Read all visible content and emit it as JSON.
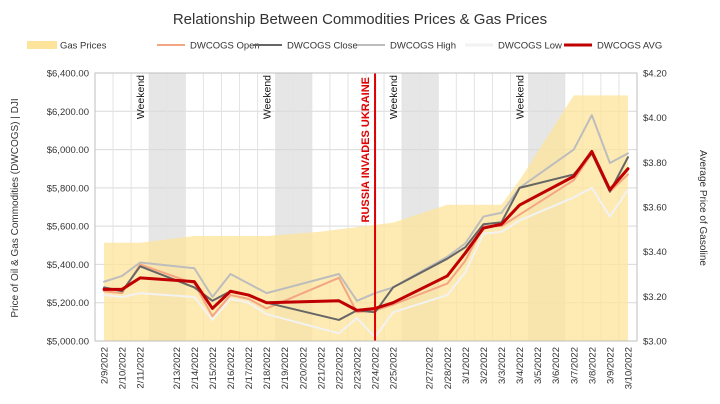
{
  "chart_data": {
    "type": "line",
    "title": "Relationship Between Commodities Prices & Gas Prices",
    "ylabel_left": "Price of Oil & Gas Commodities (DWCOGS)  |  DJI",
    "ylabel_right": "Average Price of Gasoline",
    "ylim_left": [
      5000,
      6400
    ],
    "ylim_right": [
      3.0,
      4.2
    ],
    "yticks_left": [
      "$5,000.00",
      "$5,200.00",
      "$5,400.00",
      "$5,600.00",
      "$5,800.00",
      "$6,000.00",
      "$6,200.00",
      "$6,400.00"
    ],
    "yticks_right": [
      "$3.00",
      "$3.20",
      "$3.40",
      "$3.60",
      "$3.80",
      "$4.00",
      "$4.20"
    ],
    "categories": [
      "2/9/2022",
      "2/10/2022",
      "2/11/2022",
      "2/12/2022",
      "2/13/2022",
      "2/14/2022",
      "2/15/2022",
      "2/16/2022",
      "2/17/2022",
      "2/18/2022",
      "2/19/2022",
      "2/20/2022",
      "2/21/2022",
      "2/22/2022",
      "2/23/2022",
      "2/24/2022",
      "2/25/2022",
      "2/26/2022",
      "2/27/2022",
      "2/28/2022",
      "3/1/2022",
      "3/2/2022",
      "3/3/2022",
      "3/4/2022",
      "3/5/2022",
      "3/6/2022",
      "3/7/2022",
      "3/8/2022",
      "3/9/2022",
      "3/10/2022"
    ],
    "xticks": [
      "2/9/2022",
      "2/10/2022",
      "2/11/2022",
      "2/13/2022",
      "2/14/2022",
      "2/15/2022",
      "2/16/2022",
      "2/17/2022",
      "2/18/2022",
      "2/19/2022",
      "2/20/2022",
      "2/21/2022",
      "2/22/2022",
      "2/23/2022",
      "2/24/2022",
      "2/25/2022",
      "2/27/2022",
      "2/28/2022",
      "3/1/2022",
      "3/2/2022",
      "3/3/2022",
      "3/4/2022",
      "3/5/2022",
      "3/6/2022",
      "3/7/2022",
      "3/8/2022",
      "3/9/2022",
      "3/10/2022"
    ],
    "weekend_label": "Weekend",
    "weekends": [
      [
        "2/12/2022",
        "2/13/2022"
      ],
      [
        "2/19/2022",
        "2/20/2022"
      ],
      [
        "2/26/2022",
        "2/27/2022"
      ],
      [
        "3/5/2022",
        "3/6/2022"
      ]
    ],
    "weekend_label_positions": [
      "2/11/2022",
      "2/18/2022",
      "2/25/2022",
      "3/4/2022"
    ],
    "event": {
      "label": "RUSSIA INVADES UKRAINE",
      "date": "2/24/2022",
      "color": "#e00000"
    },
    "colors": {
      "gas_area": "#fde49a",
      "open": "#f4a582",
      "close": "#666666",
      "high": "#bdbdbd",
      "low": "#f2f2f2",
      "avg": "#c00000",
      "weekend_shade": "#d9d9d9"
    },
    "area_series": {
      "name": "Gas Prices",
      "axis": "right",
      "points": [
        [
          "2/9/2022",
          3.44
        ],
        [
          "2/11/2022",
          3.44
        ],
        [
          "2/14/2022",
          3.47
        ],
        [
          "2/18/2022",
          3.47
        ],
        [
          "2/21/2022",
          3.49
        ],
        [
          "2/25/2022",
          3.53
        ],
        [
          "2/28/2022",
          3.61
        ],
        [
          "3/1/2022",
          3.61
        ],
        [
          "3/3/2022",
          3.61
        ],
        [
          "3/4/2022",
          3.72
        ],
        [
          "3/7/2022",
          4.1
        ],
        [
          "3/10/2022",
          4.1
        ]
      ]
    },
    "series": [
      {
        "name": "DWCOGS Open",
        "key": "open",
        "width": 2,
        "points": [
          [
            "2/9/2022",
            5260
          ],
          [
            "2/10/2022",
            5250
          ],
          [
            "2/11/2022",
            5400
          ],
          [
            "2/14/2022",
            5300
          ],
          [
            "2/15/2022",
            5130
          ],
          [
            "2/16/2022",
            5240
          ],
          [
            "2/17/2022",
            5220
          ],
          [
            "2/18/2022",
            5170
          ],
          [
            "2/22/2022",
            5330
          ],
          [
            "2/23/2022",
            5150
          ],
          [
            "2/24/2022",
            5160
          ],
          [
            "2/25/2022",
            5190
          ],
          [
            "2/28/2022",
            5300
          ],
          [
            "3/1/2022",
            5420
          ],
          [
            "3/2/2022",
            5600
          ],
          [
            "3/3/2022",
            5600
          ],
          [
            "3/4/2022",
            5660
          ],
          [
            "3/7/2022",
            5840
          ],
          [
            "3/8/2022",
            5980
          ],
          [
            "3/9/2022",
            5780
          ],
          [
            "3/10/2022",
            5870
          ]
        ]
      },
      {
        "name": "DWCOGS Close",
        "key": "close",
        "width": 2,
        "points": [
          [
            "2/9/2022",
            5280
          ],
          [
            "2/10/2022",
            5260
          ],
          [
            "2/11/2022",
            5390
          ],
          [
            "2/14/2022",
            5280
          ],
          [
            "2/15/2022",
            5210
          ],
          [
            "2/16/2022",
            5260
          ],
          [
            "2/17/2022",
            5240
          ],
          [
            "2/18/2022",
            5200
          ],
          [
            "2/22/2022",
            5110
          ],
          [
            "2/23/2022",
            5160
          ],
          [
            "2/24/2022",
            5150
          ],
          [
            "2/25/2022",
            5280
          ],
          [
            "2/28/2022",
            5430
          ],
          [
            "3/1/2022",
            5490
          ],
          [
            "3/2/2022",
            5610
          ],
          [
            "3/3/2022",
            5620
          ],
          [
            "3/4/2022",
            5800
          ],
          [
            "3/7/2022",
            5870
          ],
          [
            "3/8/2022",
            5980
          ],
          [
            "3/9/2022",
            5780
          ],
          [
            "3/10/2022",
            5960
          ]
        ]
      },
      {
        "name": "DWCOGS High",
        "key": "high",
        "width": 2,
        "points": [
          [
            "2/9/2022",
            5310
          ],
          [
            "2/10/2022",
            5340
          ],
          [
            "2/11/2022",
            5410
          ],
          [
            "2/14/2022",
            5380
          ],
          [
            "2/15/2022",
            5230
          ],
          [
            "2/16/2022",
            5350
          ],
          [
            "2/17/2022",
            5300
          ],
          [
            "2/18/2022",
            5250
          ],
          [
            "2/22/2022",
            5350
          ],
          [
            "2/23/2022",
            5210
          ],
          [
            "2/24/2022",
            5250
          ],
          [
            "2/25/2022",
            5280
          ],
          [
            "2/28/2022",
            5440
          ],
          [
            "3/1/2022",
            5510
          ],
          [
            "3/2/2022",
            5650
          ],
          [
            "3/3/2022",
            5670
          ],
          [
            "3/4/2022",
            5800
          ],
          [
            "3/7/2022",
            6000
          ],
          [
            "3/8/2022",
            6180
          ],
          [
            "3/9/2022",
            5930
          ],
          [
            "3/10/2022",
            5980
          ]
        ]
      },
      {
        "name": "DWCOGS Low",
        "key": "low",
        "width": 2,
        "points": [
          [
            "2/9/2022",
            5240
          ],
          [
            "2/10/2022",
            5230
          ],
          [
            "2/11/2022",
            5250
          ],
          [
            "2/14/2022",
            5230
          ],
          [
            "2/15/2022",
            5110
          ],
          [
            "2/16/2022",
            5220
          ],
          [
            "2/17/2022",
            5200
          ],
          [
            "2/18/2022",
            5140
          ],
          [
            "2/22/2022",
            5040
          ],
          [
            "2/23/2022",
            5120
          ],
          [
            "2/24/2022",
            5020
          ],
          [
            "2/25/2022",
            5150
          ],
          [
            "2/28/2022",
            5240
          ],
          [
            "3/1/2022",
            5360
          ],
          [
            "3/2/2022",
            5560
          ],
          [
            "3/3/2022",
            5570
          ],
          [
            "3/4/2022",
            5630
          ],
          [
            "3/7/2022",
            5750
          ],
          [
            "3/8/2022",
            5800
          ],
          [
            "3/9/2022",
            5650
          ],
          [
            "3/10/2022",
            5790
          ]
        ]
      },
      {
        "name": "DWCOGS AVG",
        "key": "avg",
        "width": 3,
        "points": [
          [
            "2/9/2022",
            5270
          ],
          [
            "2/10/2022",
            5270
          ],
          [
            "2/11/2022",
            5330
          ],
          [
            "2/14/2022",
            5310
          ],
          [
            "2/15/2022",
            5170
          ],
          [
            "2/16/2022",
            5260
          ],
          [
            "2/17/2022",
            5240
          ],
          [
            "2/18/2022",
            5200
          ],
          [
            "2/22/2022",
            5210
          ],
          [
            "2/23/2022",
            5160
          ],
          [
            "2/24/2022",
            5170
          ],
          [
            "2/25/2022",
            5200
          ],
          [
            "2/28/2022",
            5340
          ],
          [
            "3/1/2022",
            5460
          ],
          [
            "3/2/2022",
            5590
          ],
          [
            "3/3/2022",
            5610
          ],
          [
            "3/4/2022",
            5710
          ],
          [
            "3/7/2022",
            5860
          ],
          [
            "3/8/2022",
            5990
          ],
          [
            "3/9/2022",
            5790
          ],
          [
            "3/10/2022",
            5900
          ]
        ]
      }
    ],
    "legend": [
      "Gas Prices",
      "DWCOGS Open",
      "DWCOGS Close",
      "DWCOGS High",
      "DWCOGS Low",
      "DWCOGS AVG"
    ],
    "legend_position": "top"
  }
}
